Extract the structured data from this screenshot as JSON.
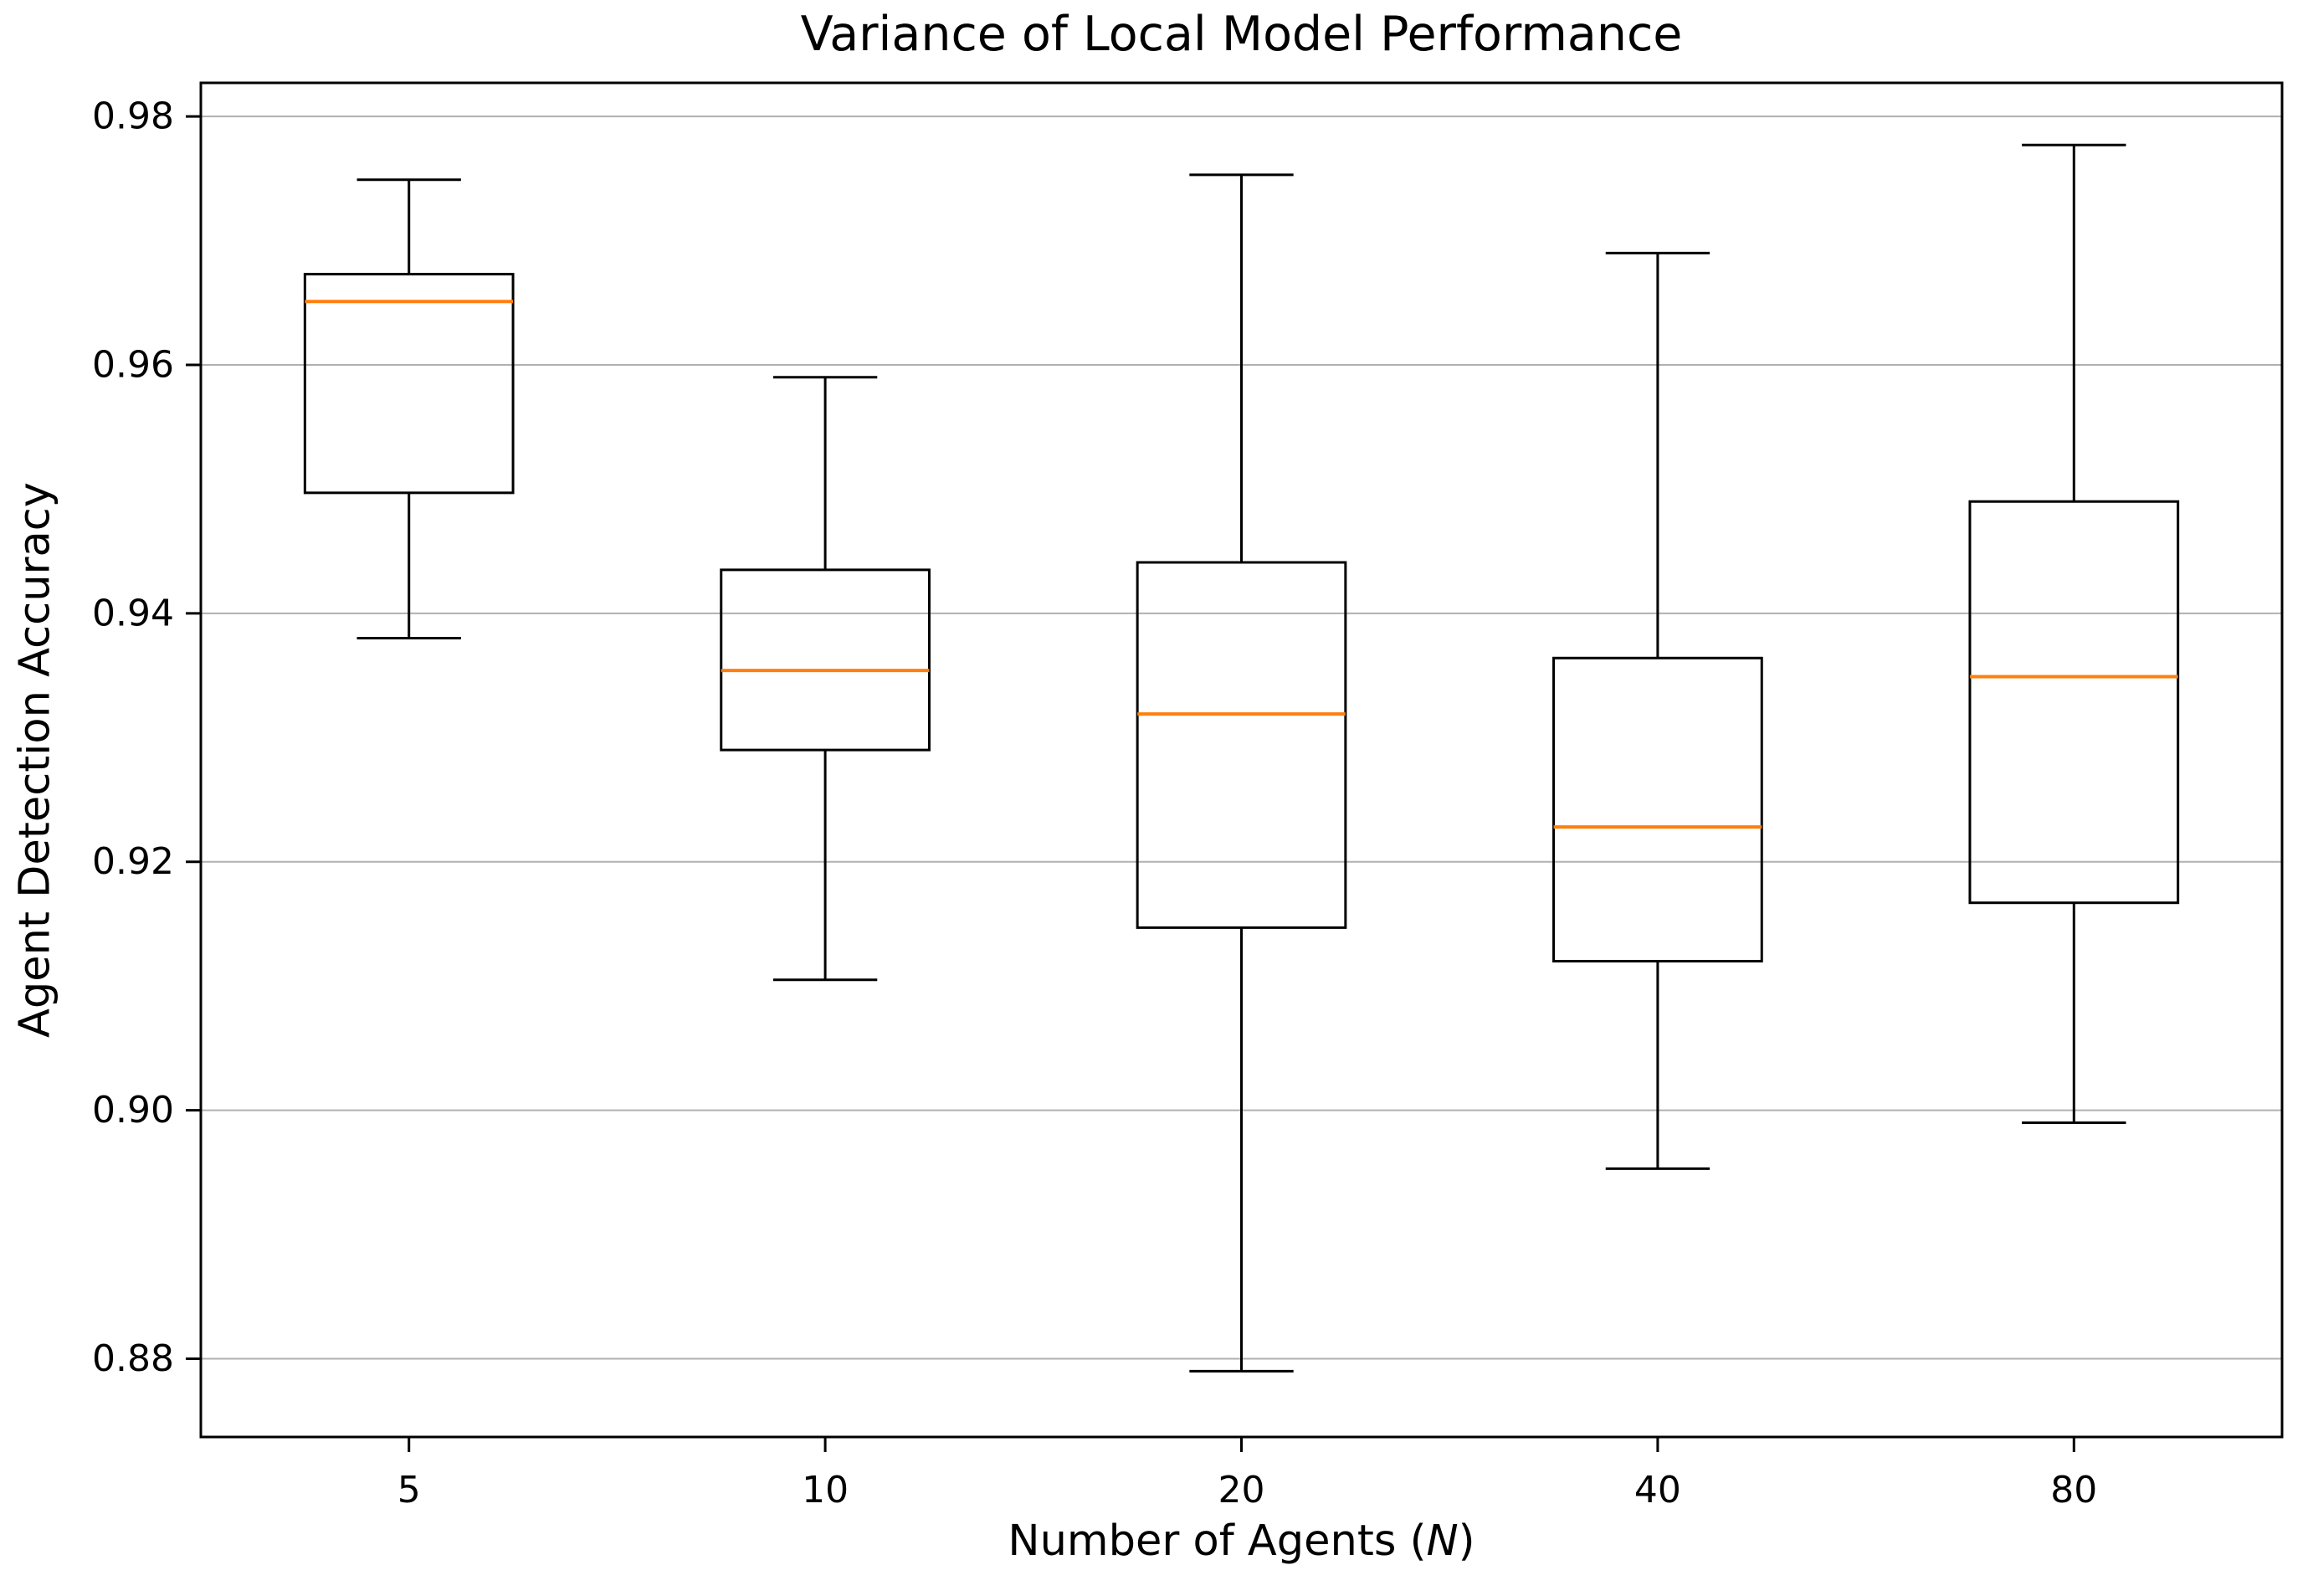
{
  "title": "Variance of Local Model Performance",
  "ylabel": "Agent Detection Accuracy",
  "xlabel_prefix": "Number of Agents (",
  "xlabel_variable": "N",
  "xlabel_suffix": ")",
  "chart_data": {
    "type": "boxplot",
    "title": "Variance of Local Model Performance",
    "xlabel": "Number of Agents (N)",
    "ylabel": "Agent Detection Accuracy",
    "categories": [
      "5",
      "10",
      "20",
      "40",
      "80"
    ],
    "ylim": [
      0.8737,
      0.9827
    ],
    "yticks": [
      0.88,
      0.9,
      0.92,
      0.94,
      0.96,
      0.98
    ],
    "ytick_labels": [
      "0.88",
      "0.90",
      "0.92",
      "0.94",
      "0.96",
      "0.98"
    ],
    "grid": true,
    "legend": "none",
    "colors": {
      "box_stroke": "#000000",
      "median": "#ff7f0e",
      "gridline": "#b0b0b0",
      "background": "#ffffff"
    },
    "boxes": [
      {
        "category": "5",
        "whislo": 0.938,
        "q1": 0.9497,
        "med": 0.9651,
        "q3": 0.9673,
        "whishi": 0.9749
      },
      {
        "category": "10",
        "whislo": 0.9105,
        "q1": 0.929,
        "med": 0.9354,
        "q3": 0.9435,
        "whishi": 0.959
      },
      {
        "category": "20",
        "whislo": 0.879,
        "q1": 0.9147,
        "med": 0.9319,
        "q3": 0.9441,
        "whishi": 0.9753
      },
      {
        "category": "40",
        "whislo": 0.8953,
        "q1": 0.912,
        "med": 0.9228,
        "q3": 0.9364,
        "whishi": 0.969
      },
      {
        "category": "80",
        "whislo": 0.899,
        "q1": 0.9167,
        "med": 0.9349,
        "q3": 0.949,
        "whishi": 0.9777
      }
    ]
  }
}
